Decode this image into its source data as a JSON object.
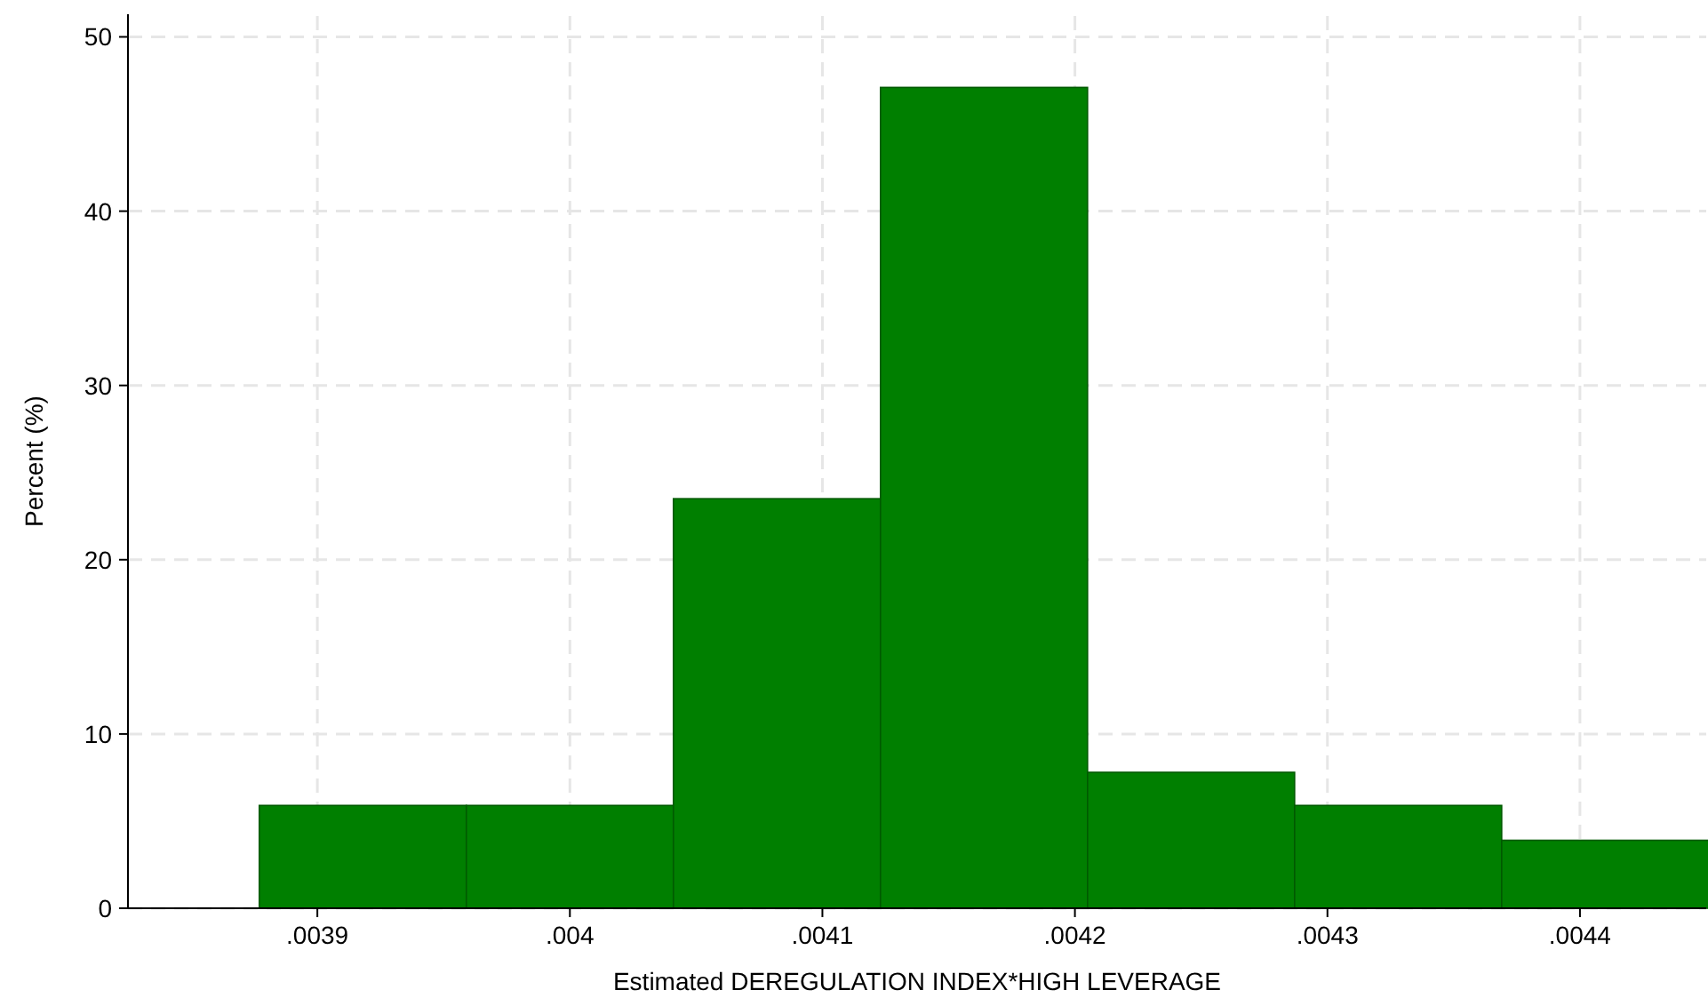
{
  "chart_data": {
    "type": "histogram",
    "xlabel": "Estimated DEREGULATION INDEX*HIGH LEVERAGE",
    "ylabel": "Percent (%)",
    "bins": [
      0.003877,
      0.003959,
      0.004041,
      0.004123,
      0.004205,
      0.004287,
      0.004369,
      0.004451
    ],
    "values": [
      5.9,
      5.9,
      23.5,
      47.1,
      7.8,
      5.9,
      3.9
    ],
    "color": "#007f00",
    "xlim": [
      0.003825,
      0.00445
    ],
    "ylim": [
      0,
      51.3
    ],
    "xticks": [
      {
        "value": 0.0039,
        "label": ".0039"
      },
      {
        "value": 0.004,
        "label": ".004"
      },
      {
        "value": 0.0041,
        "label": ".0041"
      },
      {
        "value": 0.0042,
        "label": ".0042"
      },
      {
        "value": 0.0043,
        "label": ".0043"
      },
      {
        "value": 0.0044,
        "label": ".0044"
      }
    ],
    "yticks": [
      0,
      10,
      20,
      30,
      40,
      50
    ],
    "grid": true
  }
}
